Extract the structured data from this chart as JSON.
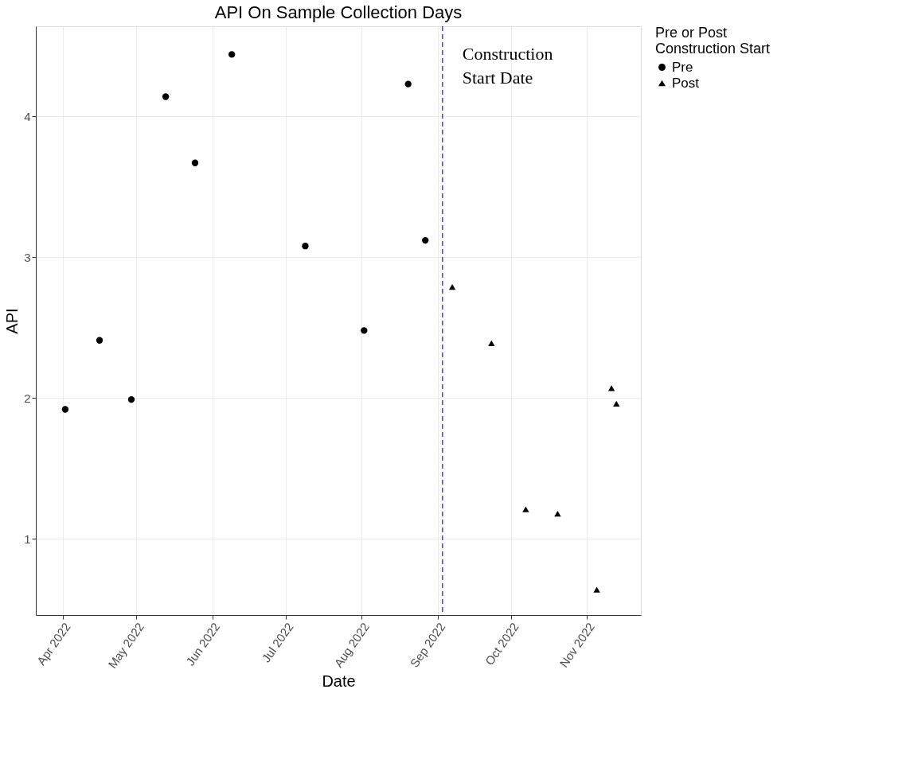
{
  "chart_data": {
    "type": "scatter",
    "title": "API On Sample Collection Days",
    "xlabel": "Date",
    "ylabel": "API",
    "legend_title": "Pre or Post\nConstruction Start",
    "series": [
      {
        "name": "Pre",
        "color": "#000000",
        "marker": "circle",
        "x": [
          "2022-04-02",
          "2022-04-16",
          "2022-04-29",
          "2022-05-13",
          "2022-05-25",
          "2022-06-09",
          "2022-07-09",
          "2022-08-02",
          "2022-08-20",
          "2022-08-27"
        ],
        "values": [
          1.92,
          2.41,
          1.99,
          4.14,
          3.67,
          4.44,
          3.08,
          2.48,
          4.23,
          3.12
        ]
      },
      {
        "name": "Post",
        "color": "#000000",
        "marker": "triangle",
        "x": [
          "2022-09-07",
          "2022-09-23",
          "2022-10-07",
          "2022-10-20",
          "2022-11-05",
          "2022-11-11",
          "2022-11-13"
        ],
        "values": [
          2.79,
          2.39,
          1.21,
          1.18,
          0.64,
          2.07,
          1.96
        ]
      }
    ],
    "xlim": [
      "2022-03-21",
      "2022-11-23"
    ],
    "xticks": [
      {
        "value": "2022-04-01",
        "label": "Apr 2022"
      },
      {
        "value": "2022-05-01",
        "label": "May 2022"
      },
      {
        "value": "2022-06-01",
        "label": "Jun 2022"
      },
      {
        "value": "2022-07-01",
        "label": "Jul 2022"
      },
      {
        "value": "2022-08-01",
        "label": "Aug 2022"
      },
      {
        "value": "2022-09-01",
        "label": "Sep 2022"
      },
      {
        "value": "2022-10-01",
        "label": "Oct 2022"
      },
      {
        "value": "2022-11-01",
        "label": "Nov 2022"
      }
    ],
    "ylim": [
      0.46,
      4.64
    ],
    "yticks": [
      1,
      2,
      3,
      4
    ],
    "ref_lines": [
      {
        "axis": "x",
        "value": "2022-09-03",
        "label": "Construction\nStart Date",
        "color": "#4040ff",
        "line_style": "dashed"
      }
    ],
    "grid": true,
    "legend": "right"
  }
}
